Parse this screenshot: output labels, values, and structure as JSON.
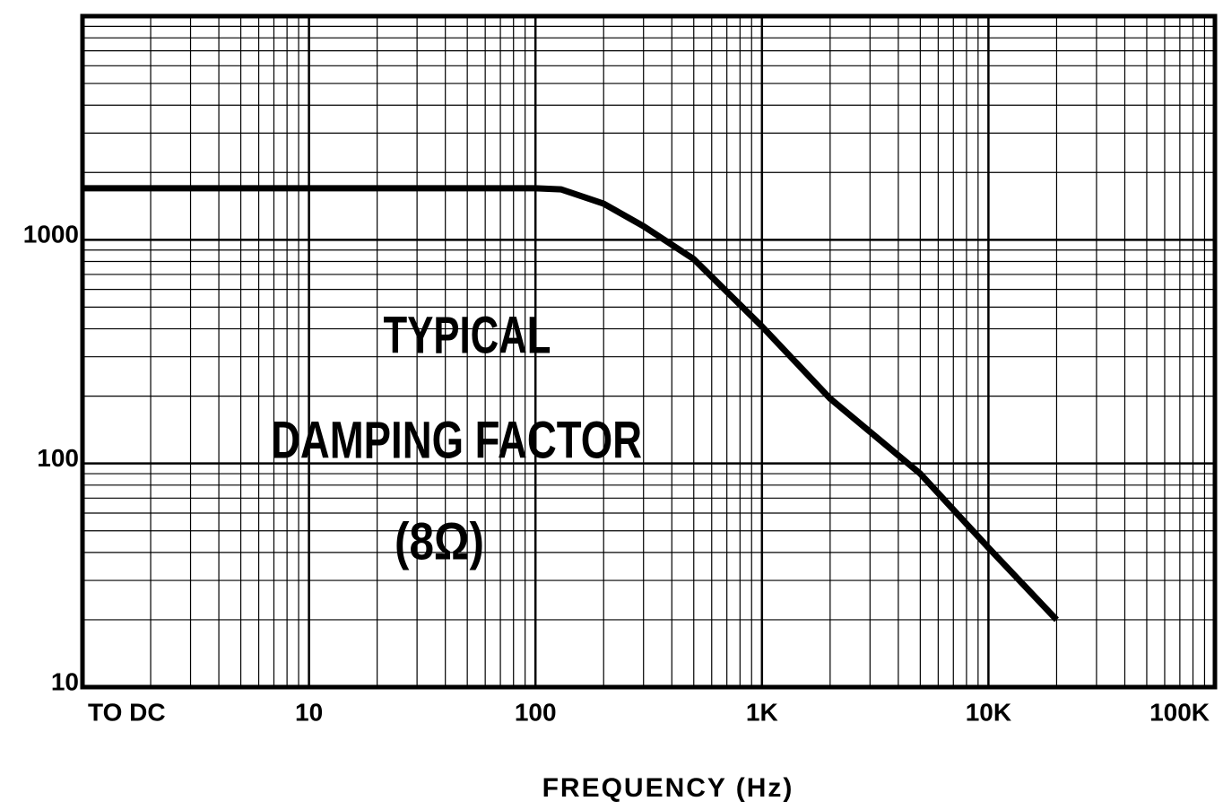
{
  "chart_data": {
    "type": "line",
    "x_label": "FREQUENCY (Hz)",
    "annotations": [
      "TYPICAL",
      "DAMPING FACTOR",
      "(8Ω)"
    ],
    "x": [
      1,
      50,
      100,
      130,
      200,
      300,
      500,
      1000,
      2000,
      5000,
      10000,
      20000
    ],
    "values": [
      1700,
      1700,
      1700,
      1680,
      1450,
      1150,
      820,
      410,
      195,
      90,
      42,
      20
    ],
    "color": "#000000",
    "x_log": true,
    "y_log": true,
    "grid": true,
    "xlim": [
      1,
      100000
    ],
    "ylim": [
      10,
      10000
    ],
    "xticks": [
      {
        "value": 1,
        "label": "TO DC"
      },
      10,
      100,
      {
        "value": 1000,
        "label": "1K"
      },
      {
        "value": 10000,
        "label": "10K"
      },
      {
        "value": 100000,
        "label": "100K"
      }
    ],
    "yticks": [
      10,
      100,
      1000
    ],
    "x_minor_ticks": [
      2,
      3,
      4,
      5,
      6,
      7,
      8,
      9,
      20,
      30,
      40,
      50,
      60,
      70,
      80,
      90,
      200,
      300,
      400,
      500,
      600,
      700,
      800,
      900,
      2000,
      3000,
      4000,
      5000,
      6000,
      7000,
      8000,
      9000,
      20000,
      30000,
      40000,
      50000,
      60000,
      70000,
      80000,
      90000
    ],
    "y_minor_ticks": [
      20,
      30,
      40,
      50,
      60,
      70,
      80,
      90,
      200,
      300,
      400,
      500,
      600,
      700,
      800,
      900,
      2000,
      3000,
      4000,
      5000,
      6000,
      7000,
      8000,
      9000
    ]
  }
}
